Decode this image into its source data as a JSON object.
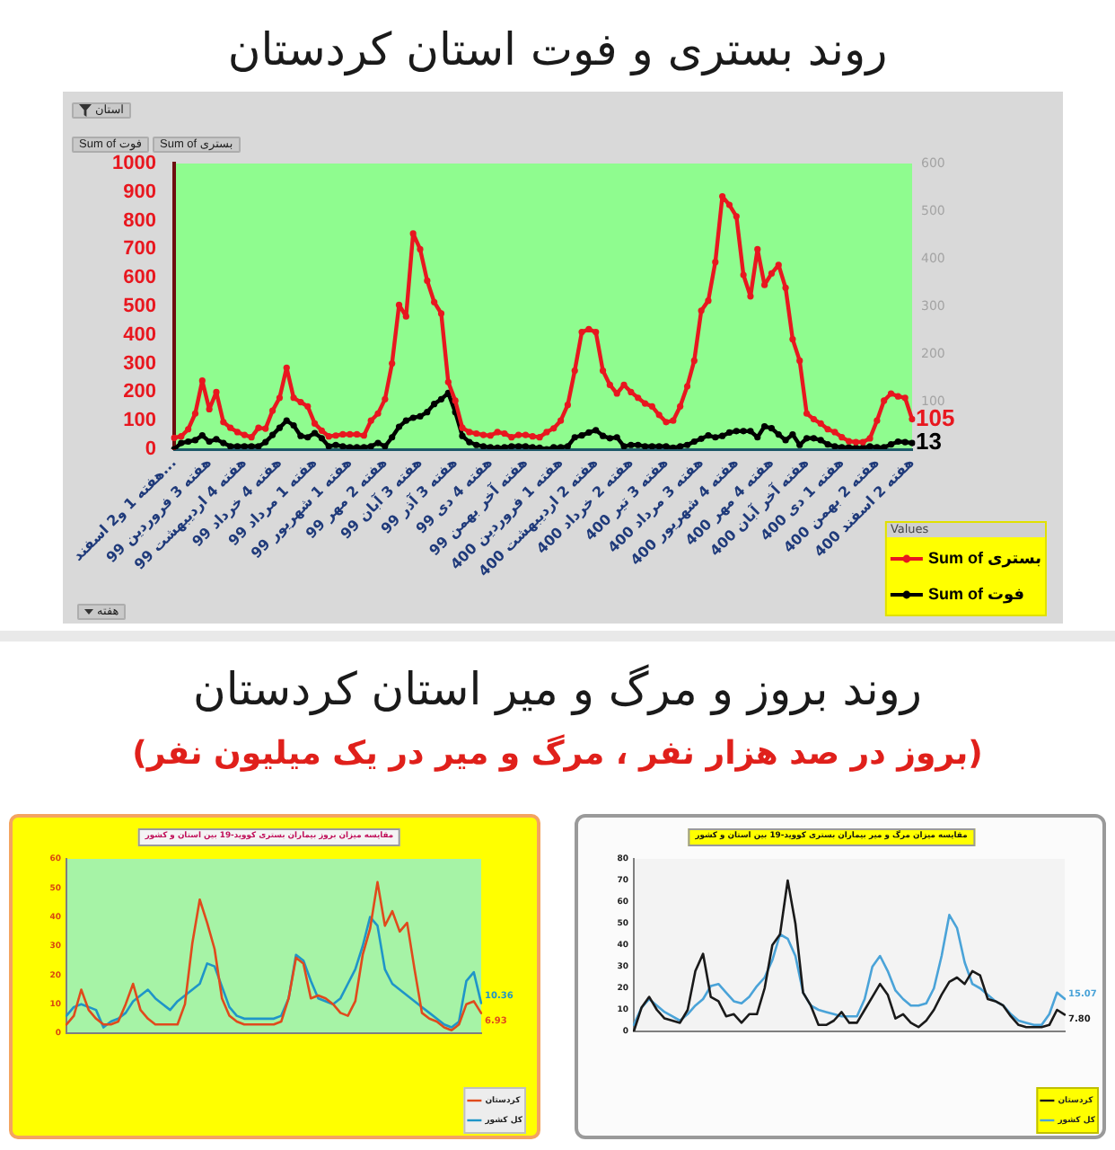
{
  "chart_data": [
    {
      "type": "line",
      "title": "روند بستری و فوت استان کردستان",
      "categories": [
        "هفته 1 و2 اسفند...",
        null,
        null,
        null,
        null,
        "هفته 3 فروردین 99",
        null,
        null,
        null,
        null,
        "هفته 4 اردیبهشت 99",
        null,
        null,
        null,
        null,
        "هفته 4 خرداد 99",
        null,
        null,
        null,
        null,
        "هفته 1 مرداد 99",
        null,
        null,
        null,
        null,
        "هفته 1 شهریور 99",
        null,
        null,
        null,
        null,
        "هفته 2 مهر 99",
        null,
        null,
        null,
        null,
        "هفته 3 آبان 99",
        null,
        null,
        null,
        null,
        "هفته 3 آذر 99",
        null,
        null,
        null,
        null,
        "هفته 4 دی 99",
        null,
        null,
        null,
        null,
        "هفته آخر بهمن 99",
        null,
        null,
        null,
        null,
        "هفته 1 فروردین 400",
        null,
        null,
        null,
        null,
        "هفته 2 اردیبهشت 400",
        null,
        null,
        null,
        null,
        "هفته 2 خرداد 400",
        null,
        null,
        null,
        null,
        "هفته 3 تیر 400",
        null,
        null,
        null,
        null,
        "هفته 3 مرداد 400",
        null,
        null,
        null,
        null,
        "هفته 4 شهریور 400",
        null,
        null,
        null,
        null,
        "هفته 4 مهر 400",
        null,
        null,
        null,
        null,
        "هفته آخر آبان 400",
        null,
        null,
        null,
        null,
        "هفته 1 دی 400",
        null,
        null,
        null,
        null,
        "هفته 2 بهمن 400",
        null,
        null,
        null,
        null,
        "هفته 2 اسفند 400"
      ],
      "series": [
        {
          "name": "Sum of بستری",
          "color": "#e8171f",
          "values": [
            40,
            45,
            70,
            125,
            240,
            140,
            200,
            95,
            75,
            60,
            50,
            42,
            75,
            72,
            135,
            180,
            285,
            180,
            165,
            150,
            90,
            65,
            45,
            48,
            52,
            52,
            52,
            48,
            100,
            125,
            175,
            300,
            505,
            465,
            755,
            700,
            590,
            515,
            475,
            235,
            170,
            75,
            60,
            55,
            50,
            48,
            60,
            55,
            42,
            50,
            50,
            45,
            42,
            60,
            73,
            100,
            155,
            275,
            410,
            420,
            410,
            275,
            225,
            195,
            225,
            200,
            180,
            160,
            150,
            120,
            95,
            100,
            150,
            220,
            310,
            485,
            520,
            655,
            885,
            855,
            815,
            610,
            535,
            700,
            575,
            615,
            645,
            565,
            385,
            310,
            125,
            105,
            90,
            70,
            60,
            42,
            28,
            25,
            25,
            38,
            100,
            170,
            195,
            185,
            180,
            105
          ],
          "value_labels": [
            null,
            null,
            null,
            null,
            null,
            null,
            null,
            null,
            null,
            null,
            null,
            null,
            null,
            null,
            null,
            null,
            null,
            null,
            null,
            null,
            null,
            null,
            null,
            null,
            null,
            null,
            null,
            null,
            null,
            null,
            null,
            null,
            null,
            null,
            null,
            null,
            null,
            null,
            null,
            null,
            null,
            null,
            null,
            null,
            null,
            null,
            null,
            null,
            null,
            null,
            null,
            null,
            null,
            null,
            null,
            null,
            null,
            null,
            null,
            null,
            null,
            null,
            null,
            null,
            null,
            null,
            null,
            null,
            null,
            null,
            null,
            null,
            null,
            null,
            null,
            null,
            null,
            null,
            null,
            null,
            null,
            null,
            null,
            null,
            null,
            null,
            null,
            null,
            null,
            null,
            null,
            null,
            null,
            null,
            null,
            null,
            null,
            null,
            null,
            null,
            null,
            null,
            null,
            null,
            null,
            "105"
          ]
        },
        {
          "name": "Sum of فوت",
          "color": "#000000",
          "axis": "y2",
          "values": [
            0,
            13,
            16,
            19,
            29,
            16,
            21,
            13,
            6,
            6,
            6,
            6,
            6,
            15,
            30,
            45,
            60,
            50,
            28,
            25,
            34,
            23,
            6,
            9,
            6,
            4,
            4,
            4,
            6,
            13,
            6,
            25,
            47,
            60,
            66,
            69,
            78,
            95,
            105,
            118,
            78,
            28,
            15,
            9,
            6,
            4,
            3,
            4,
            6,
            6,
            6,
            4,
            3,
            0,
            4,
            4,
            6,
            25,
            29,
            35,
            40,
            28,
            23,
            25,
            6,
            9,
            9,
            6,
            6,
            6,
            6,
            3,
            6,
            9,
            16,
            22,
            29,
            25,
            28,
            35,
            38,
            38,
            38,
            25,
            48,
            44,
            31,
            19,
            31,
            9,
            23,
            23,
            19,
            10,
            6,
            4,
            4,
            3,
            3,
            6,
            4,
            4,
            10,
            16,
            15,
            13
          ],
          "value_labels": [
            null,
            null,
            null,
            null,
            null,
            null,
            null,
            null,
            null,
            null,
            null,
            null,
            null,
            null,
            null,
            null,
            null,
            null,
            null,
            null,
            null,
            null,
            null,
            null,
            null,
            null,
            null,
            null,
            null,
            null,
            null,
            null,
            null,
            null,
            null,
            null,
            null,
            null,
            null,
            null,
            null,
            null,
            null,
            null,
            null,
            null,
            null,
            null,
            null,
            null,
            null,
            null,
            null,
            null,
            null,
            null,
            null,
            null,
            null,
            null,
            null,
            null,
            null,
            null,
            null,
            null,
            null,
            null,
            null,
            null,
            null,
            null,
            null,
            null,
            null,
            null,
            null,
            null,
            null,
            null,
            null,
            null,
            null,
            null,
            null,
            null,
            null,
            null,
            null,
            null,
            null,
            null,
            null,
            null,
            null,
            null,
            null,
            null,
            null,
            null,
            null,
            null,
            null,
            null,
            null,
            "13"
          ]
        }
      ],
      "ylim": [
        0,
        1000
      ],
      "yticks": [
        0,
        100,
        200,
        300,
        400,
        500,
        600,
        700,
        800,
        900,
        1000
      ],
      "y2lim": [
        0,
        600
      ],
      "y2ticks": [
        100,
        200,
        300,
        400,
        500,
        600
      ],
      "marker": "circle",
      "legend": "bottom right",
      "legend_title": "Values",
      "annotations": [
        "استان",
        "Sum of فوت",
        "Sum of بستری",
        "هفته"
      ]
    },
    {
      "type": "other",
      "title": "روند بروز و مرگ و میر استان کردستان",
      "subtitle": "(بروز در صد هزار نفر ، مرگ و میر در یک میلیون نفر)"
    },
    {
      "type": "line",
      "title": "مقایسه میزان بروز بیماران بستری کووید-19 بین استان و کشور",
      "categories": [
        null,
        null,
        null,
        null,
        null,
        null,
        null,
        null,
        null,
        null,
        null,
        null,
        null,
        null,
        null,
        null,
        null,
        null,
        null,
        null,
        null,
        null,
        null,
        null,
        null,
        null,
        null,
        null,
        null,
        null,
        null,
        null,
        null,
        null,
        null,
        null,
        null,
        null,
        null,
        null,
        null,
        null,
        null,
        null,
        null,
        null,
        null,
        null,
        null,
        null,
        null,
        null,
        null,
        null,
        null,
        null,
        null
      ],
      "series": [
        {
          "name": "کردستان",
          "color": "#e04a1c",
          "values": [
            3,
            6,
            15,
            8,
            5,
            3,
            3,
            4,
            10,
            17,
            8,
            5,
            3,
            3,
            3,
            3,
            10,
            31,
            46,
            38,
            29,
            12,
            6,
            4,
            3,
            3,
            3,
            3,
            3,
            4,
            12,
            26,
            24,
            12,
            13,
            12,
            10,
            7,
            6,
            11,
            27,
            36,
            52,
            37,
            42,
            35,
            38,
            22,
            7,
            5,
            4,
            2,
            1,
            3,
            10,
            11,
            6.93
          ],
          "value_labels": [
            null,
            null,
            null,
            null,
            null,
            null,
            null,
            null,
            null,
            null,
            null,
            null,
            null,
            null,
            null,
            null,
            null,
            null,
            null,
            null,
            null,
            null,
            null,
            null,
            null,
            null,
            null,
            null,
            null,
            null,
            null,
            null,
            null,
            null,
            null,
            null,
            null,
            null,
            null,
            null,
            null,
            null,
            null,
            null,
            null,
            null,
            null,
            null,
            null,
            null,
            null,
            null,
            null,
            null,
            null,
            null,
            "6.93"
          ]
        },
        {
          "name": "کل کشور",
          "color": "#1f95c8",
          "values": [
            6,
            9,
            10,
            9,
            8,
            2,
            4,
            5,
            7,
            11,
            13,
            15,
            12,
            10,
            8,
            11,
            13,
            15,
            17,
            24,
            23,
            16,
            9,
            6,
            5,
            5,
            5,
            5,
            5,
            6,
            12,
            27,
            25,
            18,
            12,
            11,
            10,
            12,
            17,
            22,
            30,
            40,
            37,
            22,
            17,
            15,
            13,
            11,
            9,
            7,
            5,
            3,
            2,
            4,
            18,
            21,
            10.36
          ],
          "value_labels": [
            null,
            null,
            null,
            null,
            null,
            null,
            null,
            null,
            null,
            null,
            null,
            null,
            null,
            null,
            null,
            null,
            null,
            null,
            null,
            null,
            null,
            null,
            null,
            null,
            null,
            null,
            null,
            null,
            null,
            null,
            null,
            null,
            null,
            null,
            null,
            null,
            null,
            null,
            null,
            null,
            null,
            null,
            null,
            null,
            null,
            null,
            null,
            null,
            null,
            null,
            null,
            null,
            null,
            null,
            null,
            null,
            "10.36"
          ]
        }
      ],
      "ylim": [
        0,
        60
      ],
      "yticks": [
        0,
        10,
        20,
        30,
        40,
        50,
        60
      ],
      "legend": "bottom right"
    },
    {
      "type": "line",
      "title": "مقایسه میزان مرگ و میر بیماران بستری کووید-19 بین استان و کشور",
      "categories": [
        null,
        null,
        null,
        null,
        null,
        null,
        null,
        null,
        null,
        null,
        null,
        null,
        null,
        null,
        null,
        null,
        null,
        null,
        null,
        null,
        null,
        null,
        null,
        null,
        null,
        null,
        null,
        null,
        null,
        null,
        null,
        null,
        null,
        null,
        null,
        null,
        null,
        null,
        null,
        null,
        null,
        null,
        null,
        null,
        null,
        null,
        null,
        null,
        null,
        null,
        null,
        null,
        null,
        null,
        null,
        null,
        null
      ],
      "series": [
        {
          "name": "کردستان",
          "color": "#1a1a1a",
          "values": [
            0,
            11,
            16,
            10,
            6,
            5,
            4,
            10,
            28,
            36,
            16,
            14,
            7,
            8,
            4,
            8,
            8,
            20,
            40,
            45,
            70,
            50,
            18,
            12,
            3,
            3,
            5,
            9,
            4,
            4,
            10,
            16,
            22,
            17,
            6,
            8,
            4,
            2,
            5,
            10,
            17,
            23,
            25,
            22,
            28,
            26,
            15,
            14,
            12,
            7,
            3,
            2,
            2,
            2,
            3,
            10,
            7.8
          ],
          "value_labels": [
            null,
            null,
            null,
            null,
            null,
            null,
            null,
            null,
            null,
            null,
            null,
            null,
            null,
            null,
            null,
            null,
            null,
            null,
            null,
            null,
            null,
            null,
            null,
            null,
            null,
            null,
            null,
            null,
            null,
            null,
            null,
            null,
            null,
            null,
            null,
            null,
            null,
            null,
            null,
            null,
            null,
            null,
            null,
            null,
            null,
            null,
            null,
            null,
            null,
            null,
            null,
            null,
            null,
            null,
            null,
            null,
            "7.80"
          ]
        },
        {
          "name": "کل کشور",
          "color": "#4aa3d8",
          "values": [
            3,
            11,
            15,
            12,
            9,
            7,
            5,
            8,
            12,
            15,
            21,
            22,
            18,
            14,
            13,
            16,
            21,
            25,
            33,
            45,
            43,
            35,
            18,
            12,
            10,
            9,
            8,
            7,
            7,
            7,
            15,
            30,
            35,
            28,
            19,
            15,
            12,
            12,
            13,
            20,
            35,
            54,
            48,
            32,
            22,
            20,
            17,
            14,
            12,
            8,
            5,
            4,
            3,
            3,
            8,
            18,
            15.07
          ],
          "value_labels": [
            null,
            null,
            null,
            null,
            null,
            null,
            null,
            null,
            null,
            null,
            null,
            null,
            null,
            null,
            null,
            null,
            null,
            null,
            null,
            null,
            null,
            null,
            null,
            null,
            null,
            null,
            null,
            null,
            null,
            null,
            null,
            null,
            null,
            null,
            null,
            null,
            null,
            null,
            null,
            null,
            null,
            null,
            null,
            null,
            null,
            null,
            null,
            null,
            null,
            null,
            null,
            null,
            null,
            null,
            null,
            null,
            "15.07"
          ]
        }
      ],
      "ylim": [
        0,
        80
      ],
      "yticks": [
        0,
        10,
        20,
        30,
        40,
        50,
        60,
        70,
        80
      ],
      "legend": "bottom right"
    }
  ]
}
